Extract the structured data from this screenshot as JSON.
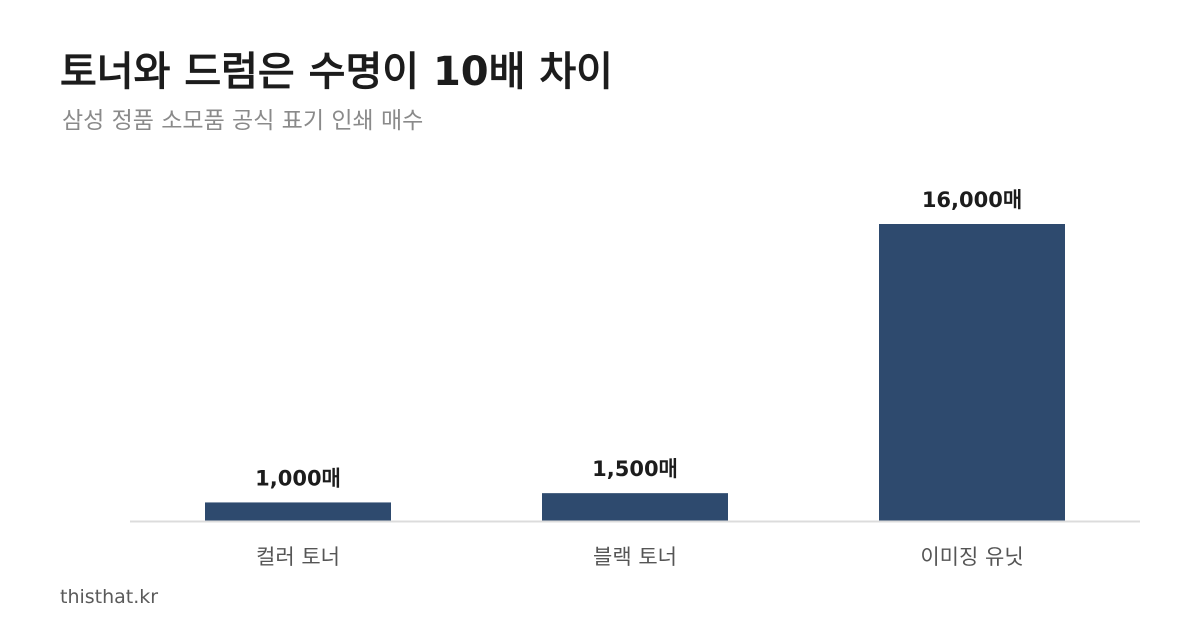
{
  "header": {
    "title": "토너와 드럼은 수명이 10배 차이",
    "subtitle": "삼성 정품 소모품 공식 표기 인쇄 매수"
  },
  "chart_data": {
    "type": "bar",
    "categories": [
      "컬러 토너",
      "블랙 토너",
      "이미징 유닛"
    ],
    "values": [
      1000,
      1500,
      16000
    ],
    "value_labels": [
      "1,000매",
      "1,500매",
      "16,000매"
    ],
    "ylim": [
      0,
      16000
    ],
    "grid": false,
    "legend": "none",
    "bar_color": "#2e4a6e",
    "baseline_color": "#dcdcdc"
  },
  "footer": {
    "source": "thisthat.kr"
  }
}
